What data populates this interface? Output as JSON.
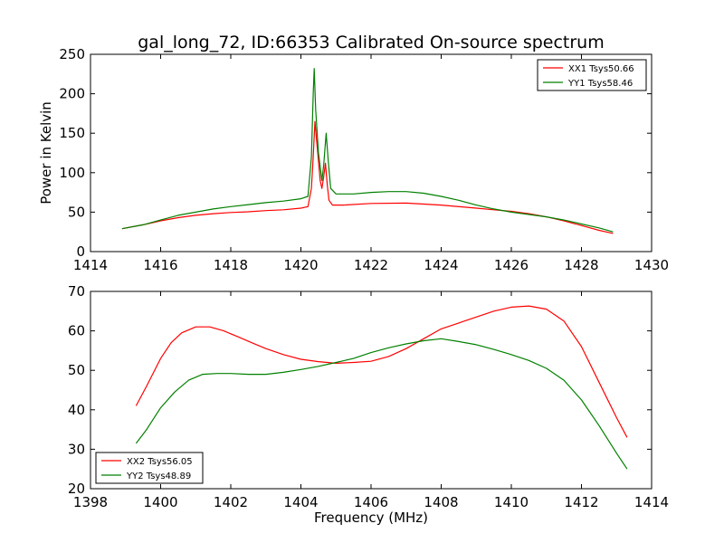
{
  "figure": {
    "title": "gal_long_72, ID:66353 Calibrated On-source spectrum"
  },
  "chart_data": [
    {
      "type": "line",
      "title": "gal_long_72, ID:66353 Calibrated On-source spectrum",
      "xlabel": "",
      "ylabel": "Power in Kelvin",
      "xlim": [
        1414,
        1430
      ],
      "ylim": [
        0,
        250
      ],
      "xticks": [
        1414,
        1416,
        1418,
        1420,
        1422,
        1424,
        1426,
        1428,
        1430
      ],
      "yticks": [
        0,
        50,
        100,
        150,
        200,
        250
      ],
      "legend": "top-right",
      "grid": false,
      "series": [
        {
          "name": "XX1 Tsys50.66",
          "color": "#ff0000",
          "points": [
            [
              1414.9,
              29
            ],
            [
              1415.5,
              34
            ],
            [
              1416.0,
              39
            ],
            [
              1416.5,
              43
            ],
            [
              1417.0,
              46
            ],
            [
              1417.5,
              48
            ],
            [
              1418.0,
              49.5
            ],
            [
              1418.5,
              50.5
            ],
            [
              1419.0,
              52
            ],
            [
              1419.5,
              53
            ],
            [
              1420.0,
              55
            ],
            [
              1420.2,
              57
            ],
            [
              1420.3,
              80
            ],
            [
              1420.35,
              120
            ],
            [
              1420.4,
              165
            ],
            [
              1420.45,
              140
            ],
            [
              1420.5,
              115
            ],
            [
              1420.55,
              90
            ],
            [
              1420.6,
              80
            ],
            [
              1420.65,
              95
            ],
            [
              1420.7,
              112
            ],
            [
              1420.75,
              85
            ],
            [
              1420.8,
              65
            ],
            [
              1420.9,
              59
            ],
            [
              1421.2,
              59
            ],
            [
              1422.0,
              61
            ],
            [
              1423.0,
              61.5
            ],
            [
              1424.0,
              59
            ],
            [
              1425.0,
              55
            ],
            [
              1425.5,
              53
            ],
            [
              1426.0,
              51
            ],
            [
              1426.5,
              48
            ],
            [
              1427.0,
              44
            ],
            [
              1427.5,
              39
            ],
            [
              1428.0,
              33
            ],
            [
              1428.5,
              27
            ],
            [
              1428.9,
              23
            ]
          ]
        },
        {
          "name": "YY1 Tsys58.46",
          "color": "#008000",
          "points": [
            [
              1414.9,
              29
            ],
            [
              1415.5,
              34
            ],
            [
              1416.0,
              40
            ],
            [
              1416.5,
              46
            ],
            [
              1417.0,
              50
            ],
            [
              1417.5,
              54
            ],
            [
              1418.0,
              57
            ],
            [
              1418.5,
              59.5
            ],
            [
              1419.0,
              62
            ],
            [
              1419.5,
              64
            ],
            [
              1420.0,
              67
            ],
            [
              1420.2,
              70
            ],
            [
              1420.3,
              120
            ],
            [
              1420.35,
              200
            ],
            [
              1420.38,
              232
            ],
            [
              1420.42,
              180
            ],
            [
              1420.5,
              125
            ],
            [
              1420.6,
              90
            ],
            [
              1420.65,
              110
            ],
            [
              1420.72,
              150
            ],
            [
              1420.78,
              115
            ],
            [
              1420.85,
              80
            ],
            [
              1421.0,
              73
            ],
            [
              1421.5,
              73
            ],
            [
              1422.0,
              75
            ],
            [
              1422.5,
              76
            ],
            [
              1423.0,
              76
            ],
            [
              1423.5,
              74
            ],
            [
              1424.0,
              70
            ],
            [
              1424.5,
              65
            ],
            [
              1425.0,
              59
            ],
            [
              1425.5,
              54
            ],
            [
              1426.0,
              50
            ],
            [
              1426.5,
              47
            ],
            [
              1427.0,
              44
            ],
            [
              1427.5,
              40
            ],
            [
              1428.0,
              35
            ],
            [
              1428.5,
              30
            ],
            [
              1428.9,
              25
            ]
          ]
        }
      ]
    },
    {
      "type": "line",
      "title": "",
      "xlabel": "Frequency (MHz)",
      "ylabel": "",
      "xlim": [
        1398,
        1414
      ],
      "ylim": [
        20,
        70
      ],
      "xticks": [
        1398,
        1400,
        1402,
        1404,
        1406,
        1408,
        1410,
        1412,
        1414
      ],
      "yticks": [
        20,
        30,
        40,
        50,
        60,
        70
      ],
      "legend": "bottom-left",
      "grid": false,
      "series": [
        {
          "name": "XX2 Tsys56.05",
          "color": "#ff0000",
          "points": [
            [
              1399.3,
              41
            ],
            [
              1399.6,
              46
            ],
            [
              1400.0,
              53
            ],
            [
              1400.3,
              57
            ],
            [
              1400.6,
              59.5
            ],
            [
              1401.0,
              61
            ],
            [
              1401.4,
              61
            ],
            [
              1401.8,
              60
            ],
            [
              1402.2,
              58.5
            ],
            [
              1402.6,
              57
            ],
            [
              1403.0,
              55.5
            ],
            [
              1403.5,
              54
            ],
            [
              1404.0,
              52.8
            ],
            [
              1404.5,
              52.2
            ],
            [
              1405.0,
              51.8
            ],
            [
              1405.5,
              52
            ],
            [
              1406.0,
              52.3
            ],
            [
              1406.5,
              53.5
            ],
            [
              1407.0,
              55.5
            ],
            [
              1407.5,
              58
            ],
            [
              1408.0,
              60.5
            ],
            [
              1408.5,
              62
            ],
            [
              1409.0,
              63.5
            ],
            [
              1409.5,
              65
            ],
            [
              1410.0,
              66
            ],
            [
              1410.5,
              66.3
            ],
            [
              1411.0,
              65.5
            ],
            [
              1411.5,
              62.5
            ],
            [
              1412.0,
              56
            ],
            [
              1412.5,
              47
            ],
            [
              1413.0,
              38
            ],
            [
              1413.3,
              33
            ]
          ]
        },
        {
          "name": "YY2 Tsys48.89",
          "color": "#008000",
          "points": [
            [
              1399.3,
              31.5
            ],
            [
              1399.6,
              35
            ],
            [
              1400.0,
              40.5
            ],
            [
              1400.4,
              44.5
            ],
            [
              1400.8,
              47.5
            ],
            [
              1401.2,
              49
            ],
            [
              1401.6,
              49.2
            ],
            [
              1402.0,
              49.2
            ],
            [
              1402.5,
              49
            ],
            [
              1403.0,
              49
            ],
            [
              1403.5,
              49.5
            ],
            [
              1404.0,
              50.2
            ],
            [
              1404.5,
              51
            ],
            [
              1405.0,
              52
            ],
            [
              1405.5,
              53
            ],
            [
              1406.0,
              54.5
            ],
            [
              1406.5,
              55.7
            ],
            [
              1407.0,
              56.7
            ],
            [
              1407.5,
              57.5
            ],
            [
              1408.0,
              58
            ],
            [
              1408.5,
              57.3
            ],
            [
              1409.0,
              56.5
            ],
            [
              1409.5,
              55.3
            ],
            [
              1410.0,
              54
            ],
            [
              1410.5,
              52.5
            ],
            [
              1411.0,
              50.5
            ],
            [
              1411.5,
              47.5
            ],
            [
              1412.0,
              42.5
            ],
            [
              1412.5,
              36
            ],
            [
              1413.0,
              29
            ],
            [
              1413.3,
              25
            ]
          ]
        }
      ]
    }
  ]
}
